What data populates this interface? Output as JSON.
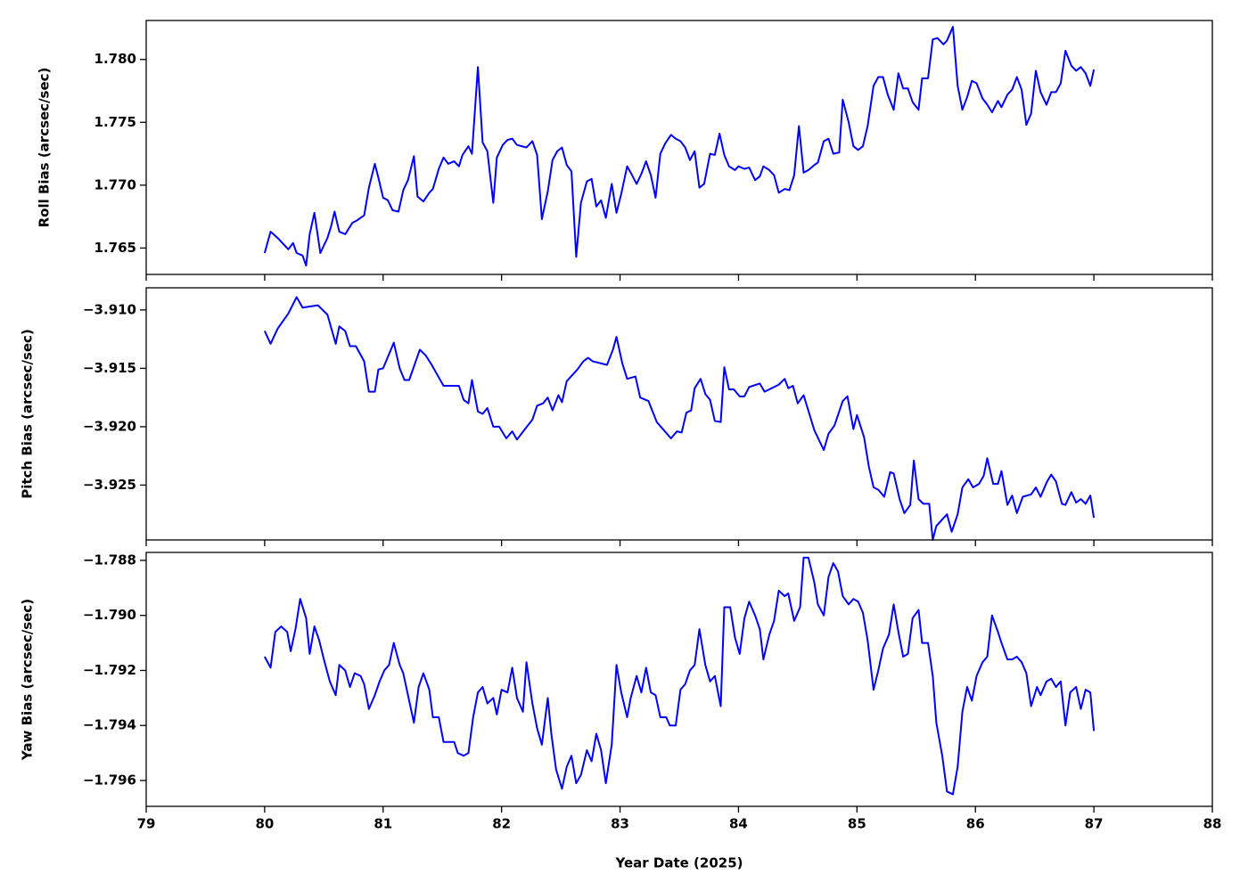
{
  "chart_data": [
    {
      "type": "line",
      "ylabel": "Roll Bias (arcsec/sec)",
      "ylim": [
        1.7629,
        1.7831
      ],
      "yticks": [
        {
          "value": 1.765,
          "label": "1.765"
        },
        {
          "value": 1.77,
          "label": "1.770"
        },
        {
          "value": 1.775,
          "label": "1.775"
        },
        {
          "value": 1.78,
          "label": "1.780"
        }
      ],
      "color": "#0000ff",
      "x": [
        80.0,
        80.05,
        80.11,
        80.16,
        80.2,
        80.24,
        80.27,
        80.32,
        80.35,
        80.38,
        80.42,
        80.47,
        80.53,
        80.56,
        80.59,
        80.63,
        80.68,
        80.74,
        80.78,
        80.84,
        80.88,
        80.93,
        80.96,
        81.0,
        81.04,
        81.08,
        81.13,
        81.17,
        81.21,
        81.26,
        81.29,
        81.34,
        81.39,
        81.42,
        81.47,
        81.51,
        81.55,
        81.6,
        81.64,
        81.67,
        81.72,
        81.75,
        81.8,
        81.84,
        81.88,
        81.93,
        81.96,
        82.01,
        82.05,
        82.09,
        82.13,
        82.21,
        82.26,
        82.3,
        82.34,
        82.39,
        82.43,
        82.47,
        82.51,
        82.55,
        82.59,
        82.63,
        82.67,
        82.72,
        82.76,
        82.8,
        82.84,
        82.88,
        82.93,
        82.97,
        83.01,
        83.06,
        83.09,
        83.14,
        83.18,
        83.22,
        83.26,
        83.3,
        83.34,
        83.38,
        83.43,
        83.47,
        83.51,
        83.55,
        83.59,
        83.63,
        83.67,
        83.71,
        83.76,
        83.8,
        83.84,
        83.88,
        83.92,
        83.97,
        84.0,
        84.05,
        84.09,
        84.14,
        84.18,
        84.21,
        84.26,
        84.3,
        84.34,
        84.39,
        84.43,
        84.47,
        84.51,
        84.55,
        84.59,
        84.64,
        84.67,
        84.72,
        84.76,
        84.8,
        84.85,
        84.88,
        84.93,
        84.97,
        85.01,
        85.05,
        85.09,
        85.14,
        85.18,
        85.22,
        85.26,
        85.31,
        85.35,
        85.39,
        85.43,
        85.47,
        85.52,
        85.55,
        85.6,
        85.64,
        85.68,
        85.73,
        85.76,
        85.81,
        85.85,
        85.89,
        85.93,
        85.97,
        86.01,
        86.06,
        86.1,
        86.14,
        86.19,
        86.22,
        86.27,
        86.31,
        86.35,
        86.39,
        86.43,
        86.47,
        86.51,
        86.55,
        86.6,
        86.64,
        86.68,
        86.72,
        86.76,
        86.81,
        86.85,
        86.89,
        86.93,
        86.97,
        87.0
      ],
      "values": [
        1.7646,
        1.7663,
        1.7658,
        1.7653,
        1.7649,
        1.7654,
        1.7646,
        1.7644,
        1.7636,
        1.7661,
        1.7678,
        1.7646,
        1.7658,
        1.7667,
        1.7679,
        1.7663,
        1.7661,
        1.767,
        1.7672,
        1.7676,
        1.7698,
        1.7717,
        1.7706,
        1.769,
        1.7688,
        1.768,
        1.7679,
        1.7696,
        1.7704,
        1.7723,
        1.7691,
        1.7687,
        1.7694,
        1.7697,
        1.7713,
        1.7722,
        1.7717,
        1.7719,
        1.7715,
        1.7724,
        1.7731,
        1.7725,
        1.7794,
        1.7734,
        1.7727,
        1.7686,
        1.7722,
        1.7732,
        1.7736,
        1.7737,
        1.7732,
        1.773,
        1.7735,
        1.7724,
        1.7673,
        1.7695,
        1.772,
        1.7727,
        1.773,
        1.7716,
        1.7711,
        1.7643,
        1.7686,
        1.7703,
        1.7705,
        1.7683,
        1.7688,
        1.7674,
        1.7701,
        1.7678,
        1.7693,
        1.7715,
        1.771,
        1.7701,
        1.7709,
        1.7719,
        1.7708,
        1.769,
        1.7725,
        1.7733,
        1.774,
        1.7737,
        1.7735,
        1.773,
        1.772,
        1.7727,
        1.7698,
        1.7701,
        1.7725,
        1.7724,
        1.7741,
        1.7724,
        1.7715,
        1.7712,
        1.7715,
        1.7713,
        1.7714,
        1.7704,
        1.7707,
        1.7715,
        1.7712,
        1.7708,
        1.7694,
        1.7697,
        1.7696,
        1.7708,
        1.7747,
        1.771,
        1.7712,
        1.7716,
        1.7718,
        1.7735,
        1.7737,
        1.7725,
        1.7726,
        1.7768,
        1.775,
        1.7731,
        1.7728,
        1.7731,
        1.7747,
        1.7779,
        1.7786,
        1.7786,
        1.7772,
        1.776,
        1.7789,
        1.7777,
        1.7777,
        1.7766,
        1.776,
        1.7785,
        1.7785,
        1.7816,
        1.7817,
        1.7812,
        1.7815,
        1.7826,
        1.7779,
        1.776,
        1.777,
        1.7783,
        1.7781,
        1.7769,
        1.7764,
        1.7758,
        1.7767,
        1.7762,
        1.7772,
        1.7776,
        1.7786,
        1.7776,
        1.7748,
        1.7757,
        1.7791,
        1.7774,
        1.7764,
        1.7774,
        1.7774,
        1.7781,
        1.7807,
        1.7795,
        1.7791,
        1.7794,
        1.7789,
        1.7779,
        1.7792
      ]
    },
    {
      "type": "line",
      "ylabel": "Pitch Bias (arcsec/sec)",
      "ylim": [
        -3.9297,
        -3.9081
      ],
      "yticks": [
        {
          "value": -3.925,
          "label": "−3.925"
        },
        {
          "value": -3.92,
          "label": "−3.920"
        },
        {
          "value": -3.915,
          "label": "−3.915"
        },
        {
          "value": -3.91,
          "label": "−3.910"
        }
      ],
      "color": "#0000ff",
      "x": [
        80.0,
        80.05,
        80.11,
        80.2,
        80.27,
        80.32,
        80.45,
        80.53,
        80.6,
        80.63,
        80.68,
        80.72,
        80.77,
        80.84,
        80.88,
        80.93,
        80.96,
        81.0,
        81.09,
        81.14,
        81.18,
        81.22,
        81.31,
        81.36,
        81.41,
        81.51,
        81.64,
        81.68,
        81.72,
        81.75,
        81.8,
        81.84,
        81.88,
        81.93,
        81.98,
        82.04,
        82.09,
        82.13,
        82.19,
        82.26,
        82.3,
        82.35,
        82.39,
        82.43,
        82.48,
        82.51,
        82.55,
        82.64,
        82.69,
        82.73,
        82.77,
        82.89,
        82.94,
        82.97,
        83.02,
        83.06,
        83.13,
        83.17,
        83.24,
        83.31,
        83.43,
        83.48,
        83.52,
        83.56,
        83.6,
        83.63,
        83.68,
        83.72,
        83.76,
        83.8,
        83.85,
        83.88,
        83.92,
        83.96,
        84.01,
        84.05,
        84.09,
        84.18,
        84.22,
        84.34,
        84.39,
        84.42,
        84.46,
        84.5,
        84.55,
        84.64,
        84.72,
        84.76,
        84.81,
        84.88,
        84.92,
        84.97,
        85.0,
        85.06,
        85.1,
        85.14,
        85.18,
        85.23,
        85.28,
        85.31,
        85.36,
        85.4,
        85.45,
        85.48,
        85.52,
        85.56,
        85.61,
        85.64,
        85.67,
        85.76,
        85.8,
        85.85,
        85.89,
        85.94,
        85.98,
        86.03,
        86.07,
        86.1,
        86.15,
        86.19,
        86.22,
        86.27,
        86.31,
        86.35,
        86.4,
        86.47,
        86.51,
        86.55,
        86.6,
        86.64,
        86.68,
        86.73,
        86.76,
        86.81,
        86.85,
        86.89,
        86.93,
        86.97,
        87.0
      ],
      "values": [
        -3.9118,
        -3.9129,
        -3.9116,
        -3.9103,
        -3.9089,
        -3.9098,
        -3.9096,
        -3.9104,
        -3.9129,
        -3.9114,
        -3.9118,
        -3.9131,
        -3.9131,
        -3.9144,
        -3.917,
        -3.917,
        -3.9151,
        -3.915,
        -3.9128,
        -3.915,
        -3.916,
        -3.916,
        -3.9134,
        -3.9139,
        -3.9147,
        -3.9165,
        -3.9165,
        -3.9177,
        -3.918,
        -3.916,
        -3.9187,
        -3.9189,
        -3.9184,
        -3.92,
        -3.92,
        -3.921,
        -3.9204,
        -3.9211,
        -3.9203,
        -3.9194,
        -3.9182,
        -3.918,
        -3.9175,
        -3.9186,
        -3.9173,
        -3.9179,
        -3.9161,
        -3.9151,
        -3.9144,
        -3.9141,
        -3.9144,
        -3.9147,
        -3.9134,
        -3.9123,
        -3.9146,
        -3.9159,
        -3.9157,
        -3.9175,
        -3.9178,
        -3.9196,
        -3.921,
        -3.9204,
        -3.9205,
        -3.9188,
        -3.9186,
        -3.9167,
        -3.9159,
        -3.9172,
        -3.9177,
        -3.9195,
        -3.9196,
        -3.9149,
        -3.9168,
        -3.9168,
        -3.9174,
        -3.9174,
        -3.9166,
        -3.9163,
        -3.917,
        -3.9164,
        -3.9159,
        -3.9167,
        -3.9165,
        -3.918,
        -3.9173,
        -3.9203,
        -3.922,
        -3.9206,
        -3.9199,
        -3.9178,
        -3.9174,
        -3.9202,
        -3.919,
        -3.9209,
        -3.9234,
        -3.9252,
        -3.9254,
        -3.926,
        -3.9239,
        -3.924,
        -3.9262,
        -3.9274,
        -3.9267,
        -3.9229,
        -3.9262,
        -3.9266,
        -3.9266,
        -3.9297,
        -3.9285,
        -3.9275,
        -3.929,
        -3.9275,
        -3.9252,
        -3.9245,
        -3.9252,
        -3.9249,
        -3.9242,
        -3.9227,
        -3.9249,
        -3.9249,
        -3.9238,
        -3.9267,
        -3.9259,
        -3.9274,
        -3.926,
        -3.9258,
        -3.9252,
        -3.926,
        -3.9248,
        -3.9241,
        -3.9247,
        -3.9266,
        -3.9267,
        -3.9256,
        -3.9265,
        -3.9262,
        -3.9266,
        -3.9259,
        -3.9278
      ]
    },
    {
      "type": "line",
      "ylabel": "Yaw Bias (arcsec/sec)",
      "xlabel": "Year Date (2025)",
      "xlim": [
        79,
        88
      ],
      "xticks": [
        79,
        80,
        81,
        82,
        83,
        84,
        85,
        86,
        87,
        88
      ],
      "ylim": [
        -1.79694,
        -1.78771
      ],
      "yticks": [
        {
          "value": -1.796,
          "label": "−1.796"
        },
        {
          "value": -1.794,
          "label": "−1.794"
        },
        {
          "value": -1.792,
          "label": "−1.792"
        },
        {
          "value": -1.79,
          "label": "−1.790"
        },
        {
          "value": -1.788,
          "label": "−1.788"
        }
      ],
      "color": "#0000ff",
      "x": [
        80.0,
        80.05,
        80.09,
        80.14,
        80.19,
        80.22,
        80.26,
        80.3,
        80.35,
        80.38,
        80.42,
        80.46,
        80.5,
        80.55,
        80.6,
        80.63,
        80.68,
        80.72,
        80.76,
        80.81,
        80.84,
        80.88,
        80.93,
        80.97,
        81.01,
        81.05,
        81.09,
        81.14,
        81.17,
        81.21,
        81.26,
        81.3,
        81.34,
        81.39,
        81.42,
        81.47,
        81.51,
        81.55,
        81.6,
        81.63,
        81.68,
        81.72,
        81.76,
        81.8,
        81.84,
        81.88,
        81.93,
        81.96,
        82.0,
        82.05,
        82.09,
        82.13,
        82.18,
        82.21,
        82.26,
        82.3,
        82.34,
        82.39,
        82.42,
        82.46,
        82.51,
        82.55,
        82.59,
        82.63,
        82.67,
        82.72,
        82.76,
        82.8,
        82.84,
        82.88,
        82.93,
        82.97,
        83.01,
        83.06,
        83.09,
        83.14,
        83.18,
        83.22,
        83.26,
        83.3,
        83.34,
        83.39,
        83.42,
        83.47,
        83.51,
        83.55,
        83.59,
        83.63,
        83.67,
        83.72,
        83.76,
        83.8,
        83.85,
        83.88,
        83.93,
        83.97,
        84.01,
        84.05,
        84.09,
        84.14,
        84.18,
        84.21,
        84.26,
        84.3,
        84.34,
        84.39,
        84.42,
        84.47,
        84.52,
        84.55,
        84.59,
        84.64,
        84.67,
        84.72,
        84.76,
        84.8,
        84.84,
        84.88,
        84.93,
        84.97,
        85.01,
        85.05,
        85.09,
        85.14,
        85.18,
        85.22,
        85.27,
        85.31,
        85.35,
        85.39,
        85.43,
        85.47,
        85.52,
        85.55,
        85.6,
        85.64,
        85.67,
        85.72,
        85.76,
        85.81,
        85.85,
        85.89,
        85.93,
        85.97,
        86.01,
        86.06,
        86.1,
        86.14,
        86.19,
        86.22,
        86.27,
        86.31,
        86.35,
        86.39,
        86.43,
        86.47,
        86.52,
        86.55,
        86.6,
        86.64,
        86.68,
        86.72,
        86.76,
        86.8,
        86.85,
        86.89,
        86.93,
        86.97,
        87.0
      ],
      "values": [
        -1.7915,
        -1.7919,
        -1.7906,
        -1.7904,
        -1.7906,
        -1.7913,
        -1.7905,
        -1.7894,
        -1.7901,
        -1.7914,
        -1.7904,
        -1.7909,
        -1.7916,
        -1.7924,
        -1.7929,
        -1.7918,
        -1.792,
        -1.7926,
        -1.7921,
        -1.7922,
        -1.7925,
        -1.7934,
        -1.7929,
        -1.7924,
        -1.792,
        -1.7918,
        -1.791,
        -1.7918,
        -1.7921,
        -1.7929,
        -1.7939,
        -1.7926,
        -1.7921,
        -1.7927,
        -1.7937,
        -1.7937,
        -1.7946,
        -1.7946,
        -1.7946,
        -1.795,
        -1.7951,
        -1.795,
        -1.7937,
        -1.7928,
        -1.7926,
        -1.7932,
        -1.793,
        -1.7936,
        -1.7927,
        -1.7928,
        -1.7919,
        -1.793,
        -1.7935,
        -1.7917,
        -1.7932,
        -1.7941,
        -1.7947,
        -1.793,
        -1.7943,
        -1.7956,
        -1.7963,
        -1.7955,
        -1.7951,
        -1.7961,
        -1.7958,
        -1.7949,
        -1.7953,
        -1.7943,
        -1.7949,
        -1.7961,
        -1.7947,
        -1.7918,
        -1.7928,
        -1.7937,
        -1.793,
        -1.7922,
        -1.7928,
        -1.7919,
        -1.7928,
        -1.7929,
        -1.7937,
        -1.7937,
        -1.794,
        -1.794,
        -1.7927,
        -1.7925,
        -1.792,
        -1.7918,
        -1.7905,
        -1.7918,
        -1.7924,
        -1.7922,
        -1.7933,
        -1.7897,
        -1.7897,
        -1.7908,
        -1.7914,
        -1.7901,
        -1.7895,
        -1.79,
        -1.7905,
        -1.7916,
        -1.7907,
        -1.7902,
        -1.7891,
        -1.7893,
        -1.7892,
        -1.7902,
        -1.7897,
        -1.7879,
        -1.7879,
        -1.7888,
        -1.7896,
        -1.79,
        -1.7886,
        -1.7881,
        -1.7884,
        -1.7893,
        -1.7896,
        -1.7894,
        -1.7895,
        -1.7899,
        -1.7909,
        -1.7927,
        -1.792,
        -1.7912,
        -1.7907,
        -1.7896,
        -1.7906,
        -1.7915,
        -1.7914,
        -1.7901,
        -1.7898,
        -1.791,
        -1.791,
        -1.7922,
        -1.7939,
        -1.7951,
        -1.7964,
        -1.7965,
        -1.7955,
        -1.7935,
        -1.7926,
        -1.7931,
        -1.7922,
        -1.7917,
        -1.7915,
        -1.79,
        -1.7906,
        -1.791,
        -1.7916,
        -1.7916,
        -1.7915,
        -1.7917,
        -1.7921,
        -1.7933,
        -1.7926,
        -1.7929,
        -1.7924,
        -1.7923,
        -1.7926,
        -1.7924,
        -1.794,
        -1.7928,
        -1.7926,
        -1.7934,
        -1.7927,
        -1.7928,
        -1.7942
      ]
    }
  ]
}
